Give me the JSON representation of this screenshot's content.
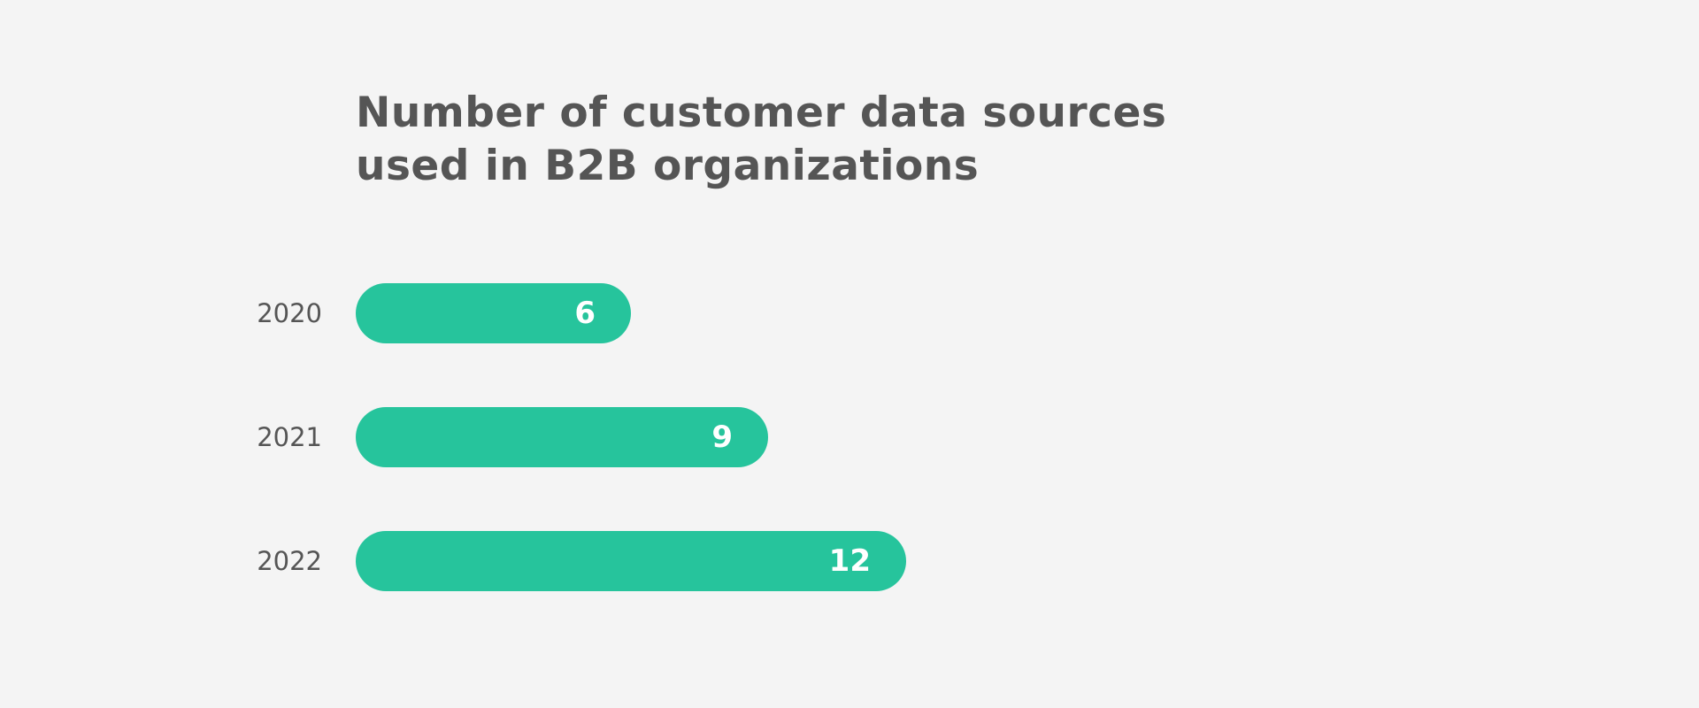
{
  "chart_data": {
    "type": "bar",
    "orientation": "horizontal",
    "title": "Number of customer data sources used in B2B organizations",
    "categories": [
      "2020",
      "2021",
      "2022"
    ],
    "values": [
      6,
      9,
      12
    ],
    "data_labels": [
      "6",
      "9",
      "12"
    ],
    "xlabel": "",
    "ylabel": "",
    "grid": false,
    "legend": "none",
    "bar_color": "#26c49c"
  },
  "colors": {
    "background": "#f4f4f4",
    "text": "#555555",
    "bar": "#26c49c",
    "value_text": "#ffffff"
  }
}
